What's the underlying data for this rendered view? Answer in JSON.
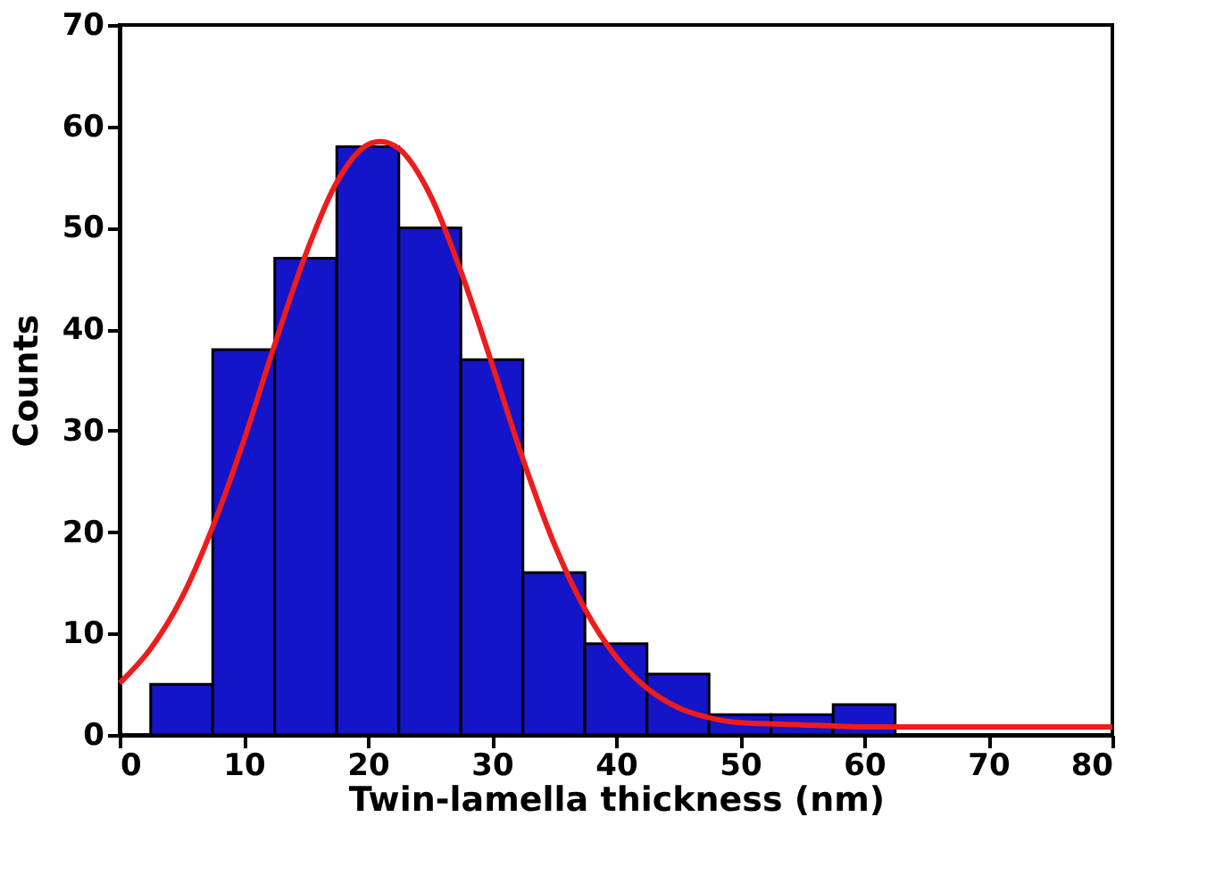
{
  "chart_data": {
    "type": "histogram",
    "xlabel": "Twin-lamella thickness (nm)",
    "ylabel": "Counts",
    "bins": [
      2.5,
      7.5,
      12.5,
      17.5,
      22.5,
      27.5,
      32.5,
      37.5,
      42.5,
      47.5,
      52.5,
      57.5,
      62.5
    ],
    "values": [
      5,
      38,
      47,
      58,
      50,
      37,
      16,
      9,
      6,
      2,
      2,
      3
    ],
    "color": "#1414c8",
    "series": [
      {
        "type": "line",
        "color": "#ee1c1c",
        "x": [
          0,
          2.5,
          5,
          7.5,
          10,
          12.5,
          15,
          17.5,
          20,
          21,
          22.5,
          25,
          27.5,
          30,
          32.5,
          35,
          37.5,
          40,
          42.5,
          45,
          47.5,
          50,
          55,
          60,
          70,
          80
        ],
        "values": [
          5.1,
          8.5,
          13.5,
          20.5,
          29.0,
          38.5,
          47.4,
          54.5,
          58.2,
          58.5,
          57.8,
          53.3,
          45.7,
          36.6,
          27.2,
          18.9,
          12.4,
          7.7,
          4.6,
          2.7,
          1.7,
          1.2,
          1.0,
          0.8,
          0.8,
          0.8
        ]
      }
    ],
    "xlim": [
      0,
      80
    ],
    "xticks": [
      0,
      10,
      20,
      30,
      40,
      50,
      60,
      70,
      80
    ],
    "ylim": [
      0,
      70
    ],
    "yticks": [
      0,
      10,
      20,
      30,
      40,
      50,
      60,
      70
    ],
    "grid": false
  }
}
